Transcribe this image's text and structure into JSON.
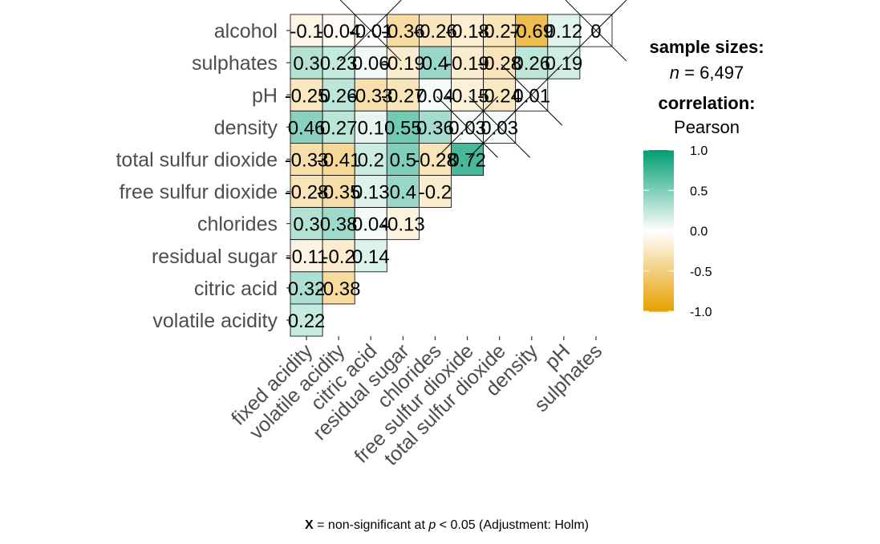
{
  "chart_data": {
    "type": "heatmap",
    "variables": [
      "fixed acidity",
      "volatile acidity",
      "citric acid",
      "residual sugar",
      "chlorides",
      "free sulfur dioxide",
      "total sulfur dioxide",
      "density",
      "pH",
      "sulphates",
      "alcohol"
    ],
    "x_labels": [
      "fixed acidity",
      "volatile acidity",
      "citric acid",
      "residual sugar",
      "chlorides",
      "free sulfur dioxide",
      "total sulfur dioxide",
      "density",
      "pH",
      "sulphates"
    ],
    "y_labels": [
      "alcohol",
      "sulphates",
      "pH",
      "density",
      "total sulfur dioxide",
      "free sulfur dioxide",
      "chlorides",
      "residual sugar",
      "citric acid",
      "volatile acidity"
    ],
    "cells": [
      {
        "row": "alcohol",
        "values": [
          -0.1,
          -0.04,
          -0.01,
          -0.36,
          -0.26,
          -0.18,
          -0.27,
          -0.69,
          0.12,
          0
        ],
        "nonsig": [
          false,
          false,
          true,
          false,
          false,
          false,
          false,
          false,
          false,
          true
        ]
      },
      {
        "row": "sulphates",
        "values": [
          0.3,
          0.23,
          0.06,
          -0.19,
          0.4,
          -0.19,
          -0.28,
          0.26,
          0.19
        ],
        "nonsig": [
          false,
          false,
          false,
          false,
          false,
          false,
          false,
          false,
          false
        ]
      },
      {
        "row": "pH",
        "values": [
          -0.25,
          0.26,
          -0.33,
          -0.27,
          0.04,
          -0.15,
          -0.24,
          0.01
        ],
        "nonsig": [
          false,
          false,
          false,
          false,
          false,
          false,
          false,
          true
        ]
      },
      {
        "row": "density",
        "values": [
          0.46,
          0.27,
          0.1,
          0.55,
          0.36,
          0.03,
          0.03
        ],
        "nonsig": [
          false,
          false,
          false,
          false,
          false,
          true,
          true
        ]
      },
      {
        "row": "total sulfur dioxide",
        "values": [
          -0.33,
          -0.41,
          0.2,
          0.5,
          -0.28,
          0.72
        ],
        "nonsig": [
          false,
          false,
          false,
          false,
          false,
          false
        ]
      },
      {
        "row": "free sulfur dioxide",
        "values": [
          -0.28,
          -0.35,
          0.13,
          0.4,
          -0.2
        ],
        "nonsig": [
          false,
          false,
          false,
          false,
          false
        ]
      },
      {
        "row": "chlorides",
        "values": [
          0.3,
          0.38,
          0.04,
          -0.13
        ],
        "nonsig": [
          false,
          false,
          false,
          false
        ]
      },
      {
        "row": "residual sugar",
        "values": [
          -0.11,
          -0.2,
          0.14
        ],
        "nonsig": [
          false,
          false,
          false
        ]
      },
      {
        "row": "citric acid",
        "values": [
          0.32,
          -0.38
        ],
        "nonsig": [
          false,
          false
        ]
      },
      {
        "row": "volatile acidity",
        "values": [
          0.22
        ],
        "nonsig": [
          false
        ]
      }
    ],
    "labels": {
      "alcohol": [
        "-0.1",
        "-0.04",
        "-0.01",
        "-0.36",
        "-0.26",
        "-0.18",
        "-0.27",
        "-0.69",
        "0.12",
        "0"
      ],
      "sulphates": [
        "0.3",
        "0.23",
        "0.06",
        "-0.19",
        "0.4",
        "-0.19",
        "-0.28",
        "0.26",
        "0.19"
      ],
      "pH": [
        "-0.25",
        "0.26",
        "-0.33",
        "-0.27",
        "0.04",
        "-0.15",
        "-0.24",
        "0.01"
      ],
      "density": [
        "0.46",
        "0.27",
        "0.1",
        "0.55",
        "0.36",
        "0.03",
        "0.03"
      ],
      "total sulfur dioxide": [
        "-0.33",
        "-0.41",
        "0.2",
        "0.5",
        "-0.28",
        "0.72"
      ],
      "free sulfur dioxide": [
        "-0.28",
        "-0.35",
        "0.13",
        "0.4",
        "-0.2"
      ],
      "chlorides": [
        "0.3",
        "0.38",
        "0.04",
        "-0.13"
      ],
      "residual sugar": [
        "-0.11",
        "-0.2",
        "0.14"
      ],
      "citric acid": [
        "0.32",
        "-0.38"
      ],
      "volatile acidity": [
        "0.22"
      ]
    },
    "color_scale": {
      "low": "#E69F00",
      "mid": "#FFFFFF",
      "high": "#009E73",
      "range": [
        -1.0,
        1.0
      ]
    },
    "legend": {
      "sample_sizes_title": "sample sizes:",
      "n_label": "n",
      "n_value": "= 6,497",
      "correlation_title": "correlation:",
      "method": "Pearson",
      "ticks": [
        "1.0",
        "0.5",
        "0.0",
        "-0.5",
        "-1.0"
      ],
      "tick_values": [
        1.0,
        0.5,
        0.0,
        -0.5,
        -1.0
      ],
      "placement": "right"
    },
    "caption": {
      "x_mark": "X",
      "text1": " = non-significant at ",
      "p": "p",
      "text2": " < 0.05 (Adjustment: Holm)"
    },
    "grid": false
  }
}
